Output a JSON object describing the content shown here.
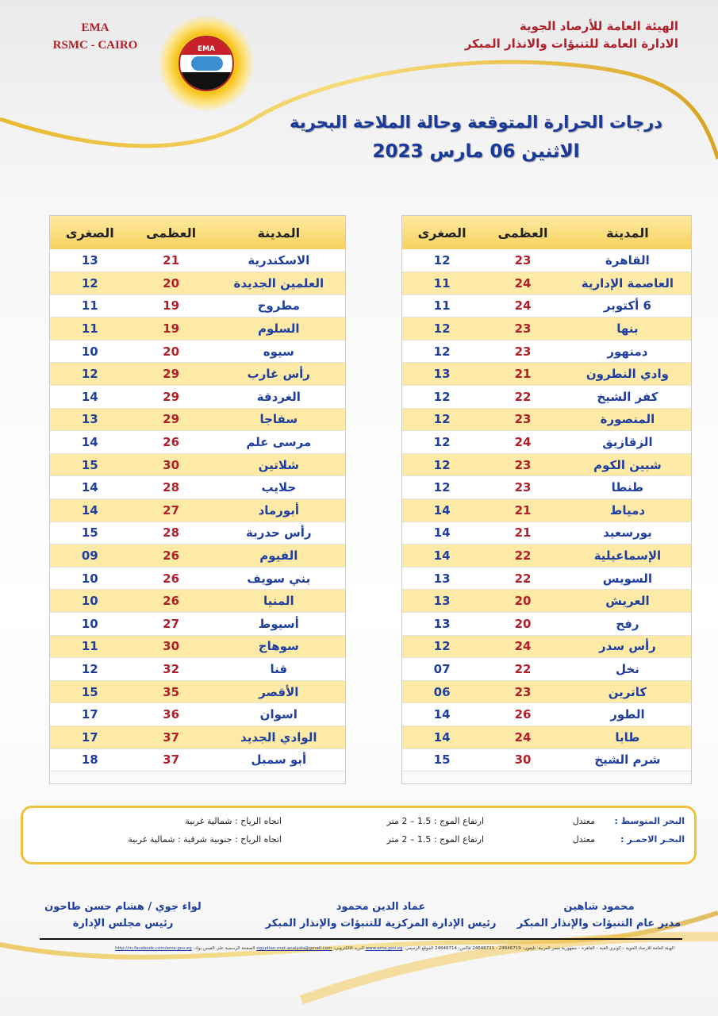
{
  "header": {
    "org_en_1": "EMA",
    "org_en_2": "RSMC - CAIRO",
    "logo_text": "EMA",
    "org_ar_1": "الهيئة العامة للأرصاد الجوية",
    "org_ar_2": "الادارة العامة للتنبؤات والانذار المبكر",
    "title": "درجات الحرارة المتوقعة وحالة الملاحة البحرية",
    "date": "الاثنين 06 مارس 2023"
  },
  "columns": {
    "city": "المدينة",
    "max": "العظمى",
    "min": "الصغرى"
  },
  "right_table": [
    [
      "القاهرة",
      "23",
      "12"
    ],
    [
      "العاصمة الإدارية",
      "24",
      "11"
    ],
    [
      "6 أكتوبر",
      "24",
      "11"
    ],
    [
      "بنها",
      "23",
      "12"
    ],
    [
      "دمنهور",
      "23",
      "12"
    ],
    [
      "وادي النطرون",
      "21",
      "13"
    ],
    [
      "كفر الشيخ",
      "22",
      "12"
    ],
    [
      "المنصورة",
      "23",
      "12"
    ],
    [
      "الزقازيق",
      "24",
      "12"
    ],
    [
      "شبين الكوم",
      "23",
      "12"
    ],
    [
      "طنطا",
      "23",
      "12"
    ],
    [
      "دمياط",
      "21",
      "14"
    ],
    [
      "بورسعيد",
      "21",
      "14"
    ],
    [
      "الإسماعيلية",
      "22",
      "14"
    ],
    [
      "السويس",
      "22",
      "13"
    ],
    [
      "العريش",
      "20",
      "13"
    ],
    [
      "رفح",
      "20",
      "13"
    ],
    [
      "رأس سدر",
      "24",
      "12"
    ],
    [
      "نخل",
      "22",
      "07"
    ],
    [
      "كاترين",
      "23",
      "06"
    ],
    [
      "الطور",
      "26",
      "14"
    ],
    [
      "طابا",
      "24",
      "14"
    ],
    [
      "شرم الشيخ",
      "30",
      "15"
    ]
  ],
  "left_table": [
    [
      "الاسكندرية",
      "21",
      "13"
    ],
    [
      "العلمين الجديدة",
      "20",
      "12"
    ],
    [
      "مطروح",
      "19",
      "11"
    ],
    [
      "السلوم",
      "19",
      "11"
    ],
    [
      "سيوه",
      "20",
      "10"
    ],
    [
      "رأس غارب",
      "29",
      "12"
    ],
    [
      "الغردقة",
      "29",
      "14"
    ],
    [
      "سفاجا",
      "29",
      "13"
    ],
    [
      "مرسى علم",
      "26",
      "14"
    ],
    [
      "شلاتين",
      "30",
      "15"
    ],
    [
      "حلايب",
      "28",
      "14"
    ],
    [
      "أبورماد",
      "27",
      "14"
    ],
    [
      "رأس حدربة",
      "28",
      "15"
    ],
    [
      "الفيوم",
      "26",
      "09"
    ],
    [
      "بني سويف",
      "26",
      "10"
    ],
    [
      "المنيا",
      "26",
      "10"
    ],
    [
      "أسيوط",
      "27",
      "10"
    ],
    [
      "سوهاج",
      "30",
      "11"
    ],
    [
      "قنا",
      "32",
      "12"
    ],
    [
      "الأقصر",
      "35",
      "15"
    ],
    [
      "اسوان",
      "36",
      "17"
    ],
    [
      "الوادي الجديد",
      "37",
      "17"
    ],
    [
      "أبو سمبل",
      "37",
      "18"
    ]
  ],
  "sea": [
    {
      "name": "البحر المتوسط :",
      "state": "معتدل",
      "wave": "ارتفاع الموج : 1.5 – 2  متر",
      "wind": "اتجاه الرياح : شمالية غربية"
    },
    {
      "name": "البحـر الاحمـر :",
      "state": "معتدل",
      "wave": "ارتفاع الموج : 1.5 – 2  متر",
      "wind": "اتجاه الرياح : جنوبية شرقية :  شمالية غربية"
    }
  ],
  "signatures": [
    {
      "name": "محمود شاهين",
      "title": "مدير عام التنبؤات والإنذار المبكر"
    },
    {
      "name": "عماد الدين محمود",
      "title": "رئيس الإدارة المركزية للتنبؤات والإنذار المبكر"
    },
    {
      "name": "لواء جوي / هشام حسن طاحون",
      "title": "رئيس مجلس الإدارة"
    }
  ],
  "footer": {
    "address": "الهيئة العامة للأرصاد الجوية – كوبري القبة – القاهرة – جمهورية مصر العربية. تليفون: 24646719 - 24646721 فاكس: 24646714 الموقع الرسمي:",
    "website": "www.ema.gov.eg",
    "email_label": "البريد الالكتروني:",
    "email": "egyptian.met.analysis@gmail.com",
    "fb_label": "الصفحة الرسمية على الفيس بوك:",
    "facebook": "http://m.facebook.com/ema.gov.eg"
  }
}
